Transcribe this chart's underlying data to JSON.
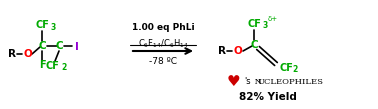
{
  "bg_color": "#ffffff",
  "fig_width": 3.78,
  "fig_height": 1.09,
  "dpi": 100,
  "green": "#00aa00",
  "red": "#ff0000",
  "black": "#000000",
  "purple": "#9400d3",
  "heart_red": "#cc0000",
  "fs_main": 7.0,
  "fs_bold": 7.5,
  "fs_sub": 5.5,
  "conditions_line1": "1.00 eq PhLi",
  "conditions_line2": "C₆F₁₄/C₆H₁₄",
  "conditions_line3": "-78 ºC",
  "heart_text": "♥",
  "nucleophiles": "'s  Nucleophiles",
  "yield_text": "82% Yield"
}
